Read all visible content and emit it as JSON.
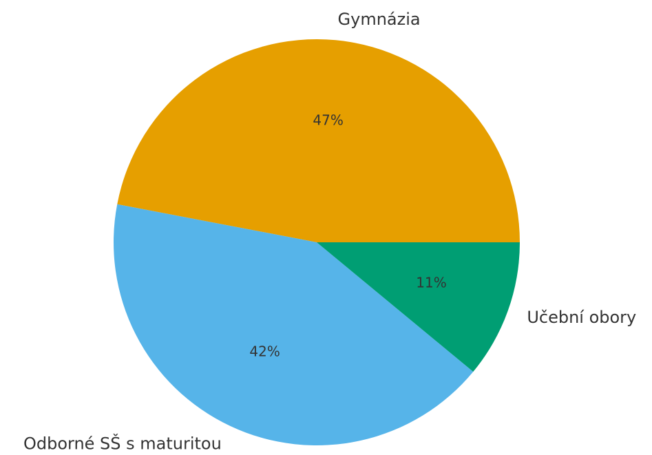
{
  "chart_data": {
    "type": "pie",
    "categories": [
      "Gymnázia",
      "Odborné SŠ s maturitou",
      "Učební obory"
    ],
    "values": [
      47,
      42,
      11
    ],
    "value_labels": [
      "47%",
      "42%",
      "11%"
    ],
    "colors": [
      "#e69f00",
      "#56b4e9",
      "#009e73"
    ]
  }
}
